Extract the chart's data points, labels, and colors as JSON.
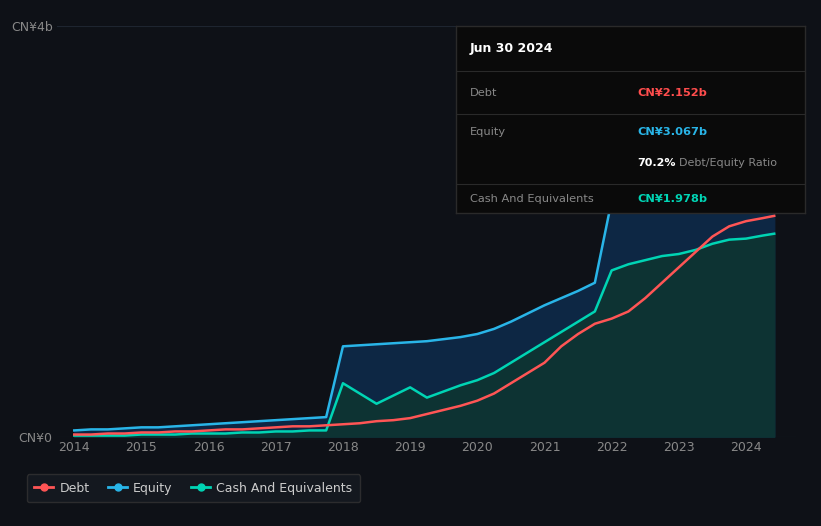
{
  "bg_color": "#0e1117",
  "plot_bg_color": "#0e1117",
  "title_box": {
    "date": "Jun 30 2024",
    "debt_label": "Debt",
    "debt_value": "CN¥2.152b",
    "debt_color": "#ff4d4d",
    "equity_label": "Equity",
    "equity_value": "CN¥3.067b",
    "equity_color": "#29b5e8",
    "ratio_bold": "70.2%",
    "ratio_text": "Debt/Equity Ratio",
    "cash_label": "Cash And Equivalents",
    "cash_value": "CN¥1.978b",
    "cash_color": "#00d4b4"
  },
  "ylabel": "CN¥4b",
  "ylabel0": "CN¥0",
  "xlabel_ticks": [
    "2014",
    "2015",
    "2016",
    "2017",
    "2018",
    "2019",
    "2020",
    "2021",
    "2022",
    "2023",
    "2024"
  ],
  "grid_color": "#1e2530",
  "line_debt_color": "#ff5555",
  "line_equity_color": "#29b5e8",
  "line_cash_color": "#00d4b4",
  "fill_equity_color": "#0d2744",
  "fill_cash_color": "#0d3333",
  "legend_items": [
    {
      "label": "Debt",
      "color": "#ff5555"
    },
    {
      "label": "Equity",
      "color": "#29b5e8"
    },
    {
      "label": "Cash And Equivalents",
      "color": "#00d4b4"
    }
  ],
  "years": [
    2014.0,
    2014.25,
    2014.5,
    2014.75,
    2015.0,
    2015.25,
    2015.5,
    2015.75,
    2016.0,
    2016.25,
    2016.5,
    2016.75,
    2017.0,
    2017.25,
    2017.5,
    2017.75,
    2018.0,
    2018.25,
    2018.5,
    2018.75,
    2019.0,
    2019.25,
    2019.5,
    2019.75,
    2020.0,
    2020.25,
    2020.5,
    2020.75,
    2021.0,
    2021.25,
    2021.5,
    2021.75,
    2022.0,
    2022.25,
    2022.5,
    2022.75,
    2023.0,
    2023.25,
    2023.5,
    2023.75,
    2024.0,
    2024.25,
    2024.42
  ],
  "debt": [
    0.02,
    0.02,
    0.03,
    0.03,
    0.04,
    0.04,
    0.05,
    0.05,
    0.06,
    0.07,
    0.07,
    0.08,
    0.09,
    0.1,
    0.1,
    0.11,
    0.12,
    0.13,
    0.15,
    0.16,
    0.18,
    0.22,
    0.26,
    0.3,
    0.35,
    0.42,
    0.52,
    0.62,
    0.72,
    0.88,
    1.0,
    1.1,
    1.15,
    1.22,
    1.35,
    1.5,
    1.65,
    1.8,
    1.95,
    2.05,
    2.1,
    2.13,
    2.152
  ],
  "equity": [
    0.06,
    0.07,
    0.07,
    0.08,
    0.09,
    0.09,
    0.1,
    0.11,
    0.12,
    0.13,
    0.14,
    0.15,
    0.16,
    0.17,
    0.18,
    0.19,
    0.88,
    0.89,
    0.9,
    0.91,
    0.92,
    0.93,
    0.95,
    0.97,
    1.0,
    1.05,
    1.12,
    1.2,
    1.28,
    1.35,
    1.42,
    1.5,
    2.3,
    2.5,
    2.65,
    2.75,
    2.82,
    2.9,
    2.95,
    3.0,
    3.02,
    3.05,
    3.067
  ],
  "cash": [
    0.01,
    0.01,
    0.01,
    0.01,
    0.02,
    0.02,
    0.02,
    0.03,
    0.03,
    0.03,
    0.04,
    0.04,
    0.05,
    0.05,
    0.06,
    0.06,
    0.52,
    0.42,
    0.32,
    0.4,
    0.48,
    0.38,
    0.44,
    0.5,
    0.55,
    0.62,
    0.72,
    0.82,
    0.92,
    1.02,
    1.12,
    1.22,
    1.62,
    1.68,
    1.72,
    1.76,
    1.78,
    1.82,
    1.88,
    1.92,
    1.93,
    1.96,
    1.978
  ],
  "ylim": [
    0,
    4.0
  ],
  "xlim": [
    2013.75,
    2024.75
  ]
}
